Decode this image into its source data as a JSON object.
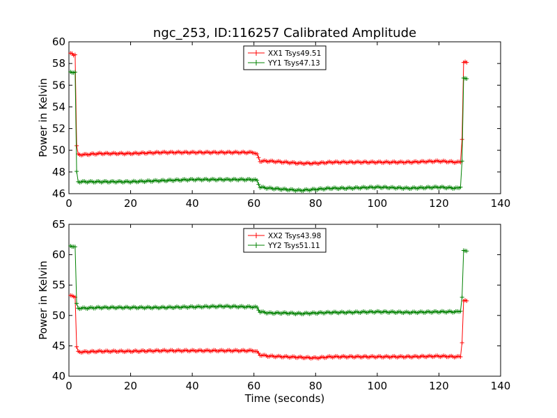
{
  "chart_data": [
    {
      "type": "line",
      "title": "ngc_253, ID:116257 Calibrated Amplitude",
      "xlabel": "",
      "ylabel": "Power in Kelvin",
      "xlim": [
        0,
        140
      ],
      "ylim": [
        46,
        60
      ],
      "xticks": [
        0,
        20,
        40,
        60,
        80,
        100,
        120,
        140
      ],
      "yticks": [
        46,
        48,
        50,
        52,
        54,
        56,
        58,
        60
      ],
      "grid": false,
      "legend_position": "top-center",
      "series": [
        {
          "name": "XX1 Tsys49.51",
          "color": "#ff0000",
          "x": [
            0.5,
            1,
            1.5,
            2,
            2.5,
            3,
            5,
            10,
            20,
            30,
            40,
            50,
            60,
            61,
            62,
            65,
            70,
            75,
            80,
            85,
            90,
            100,
            110,
            120,
            126,
            127,
            127.5,
            128,
            129
          ],
          "y": [
            58.9,
            58.9,
            58.8,
            58.8,
            50.4,
            49.6,
            49.6,
            49.7,
            49.7,
            49.8,
            49.8,
            49.8,
            49.8,
            49.6,
            49.0,
            49.0,
            48.9,
            48.8,
            48.8,
            48.9,
            48.9,
            48.9,
            48.9,
            49.0,
            48.9,
            48.9,
            51.0,
            58.1,
            58.1
          ]
        },
        {
          "name": "YY1 Tsys47.13",
          "color": "#008000",
          "x": [
            0.5,
            1,
            1.5,
            2,
            2.5,
            3,
            5,
            10,
            20,
            30,
            40,
            50,
            60,
            61,
            62,
            65,
            70,
            75,
            80,
            85,
            90,
            100,
            110,
            120,
            126,
            127,
            127.5,
            128,
            129
          ],
          "y": [
            57.2,
            57.2,
            57.2,
            57.2,
            48.0,
            47.1,
            47.1,
            47.1,
            47.1,
            47.2,
            47.3,
            47.3,
            47.3,
            47.2,
            46.6,
            46.5,
            46.4,
            46.3,
            46.4,
            46.5,
            46.5,
            46.6,
            46.5,
            46.6,
            46.5,
            46.6,
            49.0,
            56.6,
            56.6
          ]
        }
      ]
    },
    {
      "type": "line",
      "title": "",
      "xlabel": "Time (seconds)",
      "ylabel": "Power in Kelvin",
      "xlim": [
        0,
        140
      ],
      "ylim": [
        40,
        65
      ],
      "xticks": [
        0,
        20,
        40,
        60,
        80,
        100,
        120,
        140
      ],
      "yticks": [
        40,
        45,
        50,
        55,
        60,
        65
      ],
      "grid": false,
      "legend_position": "top-center",
      "series": [
        {
          "name": "XX2 Tsys43.98",
          "color": "#ff0000",
          "x": [
            0.5,
            1,
            1.5,
            2,
            2.5,
            3,
            5,
            10,
            20,
            30,
            40,
            50,
            60,
            61,
            62,
            65,
            70,
            75,
            80,
            85,
            90,
            100,
            110,
            120,
            126,
            127,
            127.5,
            128,
            129
          ],
          "y": [
            53.2,
            53.2,
            53.2,
            53.0,
            44.8,
            44.0,
            44.0,
            44.1,
            44.1,
            44.2,
            44.2,
            44.2,
            44.2,
            44.0,
            43.5,
            43.3,
            43.2,
            43.1,
            43.0,
            43.2,
            43.2,
            43.2,
            43.2,
            43.3,
            43.2,
            43.2,
            45.5,
            52.4,
            52.4
          ]
        },
        {
          "name": "YY2 Tsys51.11",
          "color": "#008000",
          "x": [
            0.5,
            1,
            1.5,
            2,
            2.5,
            3,
            5,
            10,
            20,
            30,
            40,
            50,
            60,
            61,
            62,
            65,
            70,
            75,
            80,
            85,
            90,
            100,
            110,
            120,
            126,
            127,
            127.5,
            128,
            129
          ],
          "y": [
            61.4,
            61.4,
            61.4,
            61.3,
            51.9,
            51.2,
            51.2,
            51.3,
            51.3,
            51.3,
            51.4,
            51.5,
            51.4,
            51.3,
            50.6,
            50.4,
            50.4,
            50.3,
            50.4,
            50.5,
            50.5,
            50.6,
            50.5,
            50.6,
            50.6,
            50.7,
            53.0,
            60.6,
            60.6
          ]
        }
      ]
    }
  ]
}
